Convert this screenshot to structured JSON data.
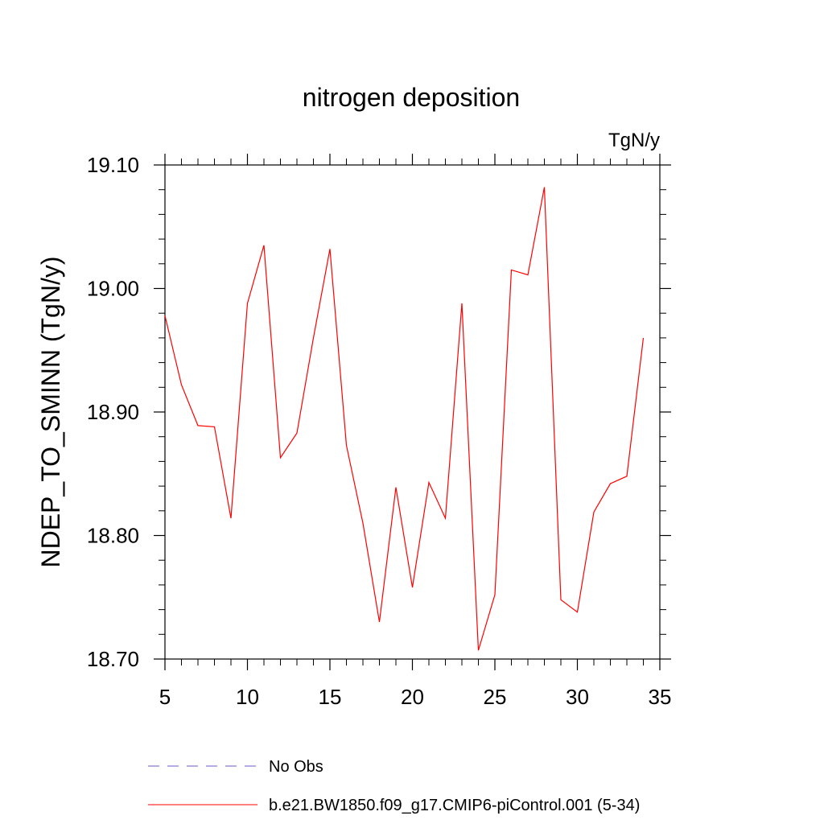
{
  "chart_data": {
    "type": "line",
    "title": "nitrogen deposition",
    "units_label": "TgN/y",
    "ylabel": "NDEP_TO_SMINN  (TgN/y)",
    "xlabel": "",
    "xlim": [
      5,
      35
    ],
    "ylim": [
      18.7,
      19.1
    ],
    "x_ticks": [
      5,
      10,
      15,
      20,
      25,
      30,
      35
    ],
    "x_tick_labels": [
      "5",
      "10",
      "15",
      "20",
      "25",
      "30",
      "35"
    ],
    "y_ticks": [
      18.7,
      18.8,
      18.9,
      19.0,
      19.1
    ],
    "y_tick_labels": [
      "18.70",
      "18.80",
      "18.90",
      "19.00",
      "19.10"
    ],
    "x_minor_step": 1,
    "y_minor_step": 0.02,
    "grid": false,
    "series": [
      {
        "name": "b.e21.BW1850.f09_g17.CMIP6-piControl.001 (5-34)",
        "color": "#ff0000",
        "style": "solid",
        "x": [
          5,
          6,
          7,
          8,
          9,
          10,
          11,
          12,
          13,
          14,
          15,
          16,
          17,
          18,
          19,
          20,
          21,
          22,
          23,
          24,
          25,
          26,
          27,
          28,
          29,
          30,
          31,
          32,
          33,
          34
        ],
        "values": [
          18.978,
          18.922,
          18.889,
          18.888,
          18.814,
          18.988,
          19.035,
          18.863,
          18.883,
          18.96,
          19.032,
          18.873,
          18.81,
          18.73,
          18.839,
          18.758,
          18.843,
          18.814,
          18.988,
          18.707,
          18.752,
          19.015,
          19.011,
          19.082,
          18.748,
          18.738,
          18.819,
          18.842,
          18.848,
          18.96
        ]
      }
    ],
    "legend": {
      "placement": "bottom",
      "items": [
        {
          "label": "No Obs",
          "color": "#6a5acd",
          "style": "dashed"
        },
        {
          "label": "b.e21.BW1850.f09_g17.CMIP6-piControl.001 (5-34)",
          "color": "#ff0000",
          "style": "solid"
        }
      ]
    }
  }
}
